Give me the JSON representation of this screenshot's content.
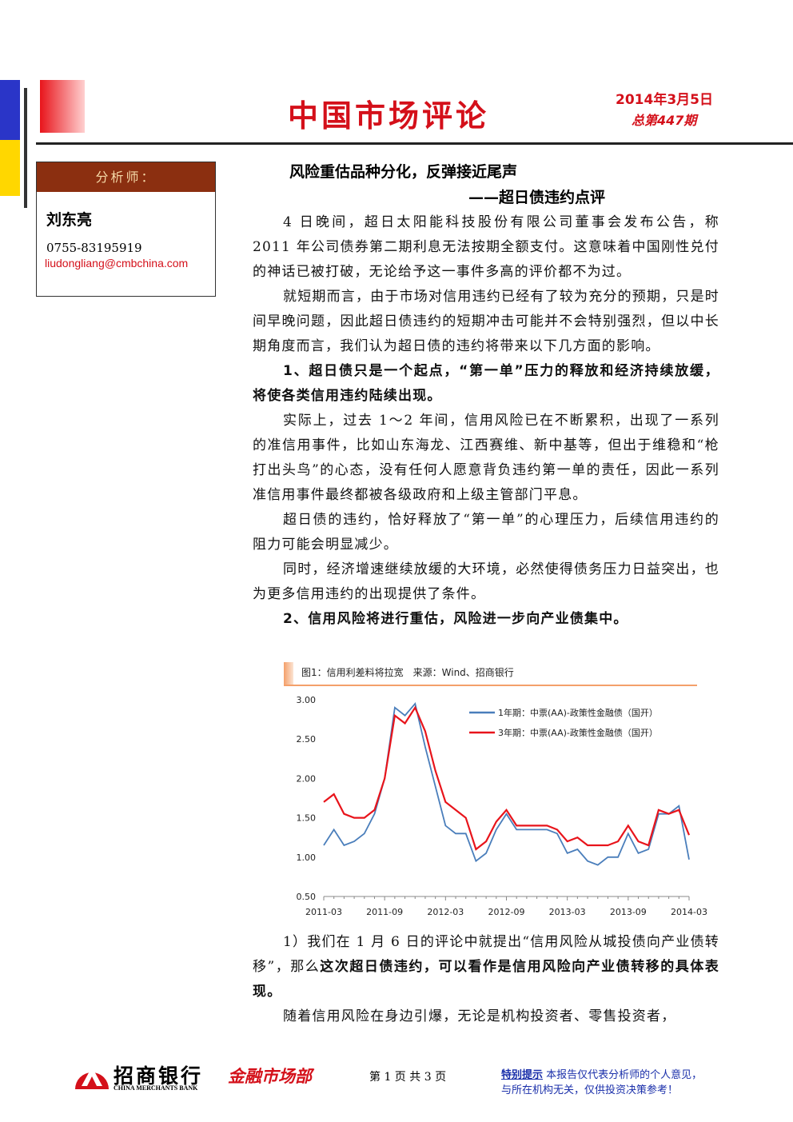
{
  "header": {
    "title": "中国市场评论",
    "date": "2014年3月5日",
    "issue": "总第447期"
  },
  "analyst": {
    "label": "分析师：",
    "name": "刘东亮",
    "phone": "0755-83195919",
    "email": "liudongliang@cmbchina.com"
  },
  "article": {
    "title": "风险重估品种分化，反弹接近尾声",
    "subtitle": "——超日债违约点评",
    "before_chart": [
      [
        {
          "text": "4 日晚间，超日太阳能科技股份有限公司董事会发布公告，称 2011 年公司债券第二期利息无法按期全额支付。这意味着中国刚性兑付的神话已被打破，无论给予这一事件多高的评价都不为过。",
          "bold": false
        }
      ],
      [
        {
          "text": "就短期而言，由于市场对信用违约已经有了较为充分的预期，只是时间早晚问题，因此超日债违约的短期冲击可能并不会特别强烈，但以中长期角度而言，我们认为超日债的违约将带来以下几方面的影响。",
          "bold": false
        }
      ],
      [
        {
          "text": "1、超日债只是一个起点，“第一单”压力的释放和经济持续放缓，将使各类信用违约陆续出现。",
          "bold": true
        }
      ],
      [
        {
          "text": "实际上，过去 1～2 年间，信用风险已在不断累积，出现了一系列的准信用事件，比如山东海龙、江西赛维、新中基等，但出于维稳和“枪打出头鸟”的心态，没有任何人愿意背负违约第一单的责任，因此一系列准信用事件最终都被各级政府和上级主管部门平息。",
          "bold": false
        }
      ],
      [
        {
          "text": "超日债的违约，恰好释放了“第一单”的心理压力，后续信用违约的阻力可能会明显减少。",
          "bold": false
        }
      ],
      [
        {
          "text": "同时，经济增速继续放缓的大环境，必然使得债务压力日益突出，也为更多信用违约的出现提供了条件。",
          "bold": false
        }
      ],
      [
        {
          "text": "2、信用风险将进行重估，风险进一步向产业债集中。",
          "bold": true
        }
      ]
    ],
    "after_chart": [
      [
        {
          "text": "1）我们在 1 月 6 日的评论中就提出“信用风险从城投债向产业债转移”，那么",
          "bold": false
        },
        {
          "text": "这次超日债违约，可以看作是信用风险向产业债转移的具体表现。",
          "bold": true
        }
      ],
      [
        {
          "text": "随着信用风险在身边引爆，无论是机构投资者、零售投资者，",
          "bold": false
        }
      ]
    ]
  },
  "chart_data": {
    "type": "line",
    "title": "图1：信用利差料将拉宽　来源：Wind、招商银行",
    "categories": [
      "2011-03",
      null,
      null,
      null,
      null,
      null,
      "2011-09",
      null,
      null,
      null,
      null,
      null,
      "2012-03",
      null,
      null,
      null,
      null,
      null,
      "2012-09",
      null,
      null,
      null,
      null,
      null,
      "2013-03",
      null,
      null,
      null,
      null,
      null,
      "2013-09",
      null,
      null,
      null,
      null,
      null,
      "2014-03"
    ],
    "series": [
      {
        "name": "1年期：中票(AA)-政策性金融债（国开）",
        "color": "#4a7ebb",
        "values": [
          1.15,
          1.35,
          1.15,
          1.2,
          1.3,
          1.55,
          2.0,
          2.9,
          2.8,
          2.95,
          2.4,
          1.9,
          1.4,
          1.3,
          1.3,
          0.95,
          1.05,
          1.35,
          1.55,
          1.35,
          1.35,
          1.35,
          1.35,
          1.3,
          1.05,
          1.1,
          0.95,
          0.9,
          1.0,
          1.0,
          1.3,
          1.05,
          1.1,
          1.55,
          1.55,
          1.65,
          0.97
        ]
      },
      {
        "name": "3年期：中票(AA)-政策性金融债（国开）",
        "color": "#e8141b",
        "values": [
          1.7,
          1.8,
          1.55,
          1.5,
          1.5,
          1.6,
          2.0,
          2.8,
          2.7,
          2.9,
          2.6,
          2.1,
          1.7,
          1.6,
          1.5,
          1.1,
          1.2,
          1.45,
          1.6,
          1.4,
          1.4,
          1.4,
          1.4,
          1.35,
          1.2,
          1.25,
          1.15,
          1.15,
          1.15,
          1.2,
          1.4,
          1.2,
          1.15,
          1.6,
          1.55,
          1.6,
          1.28
        ]
      }
    ],
    "ylim": [
      0.5,
      3.0
    ],
    "yticks": [
      {
        "value": 0.5,
        "label": "0.50"
      },
      {
        "value": 1.0,
        "label": "1.00"
      },
      {
        "value": 1.5,
        "label": "1.50"
      },
      {
        "value": 2.0,
        "label": "2.00"
      },
      {
        "value": 2.5,
        "label": "2.50"
      },
      {
        "value": 3.0,
        "label": "3.00"
      }
    ],
    "grid": false
  },
  "footer": {
    "bank": "招商银行",
    "bank_en": "CHINA MERCHANTS BANK",
    "dept": "金融市场部",
    "page": "第 1 页 共 3 页",
    "notice_label": "特别提示",
    "notice_line1": "本报告仅代表分析师的个人意见，",
    "notice_line2": "与所在机构无关，仅供投资决策参考！"
  }
}
